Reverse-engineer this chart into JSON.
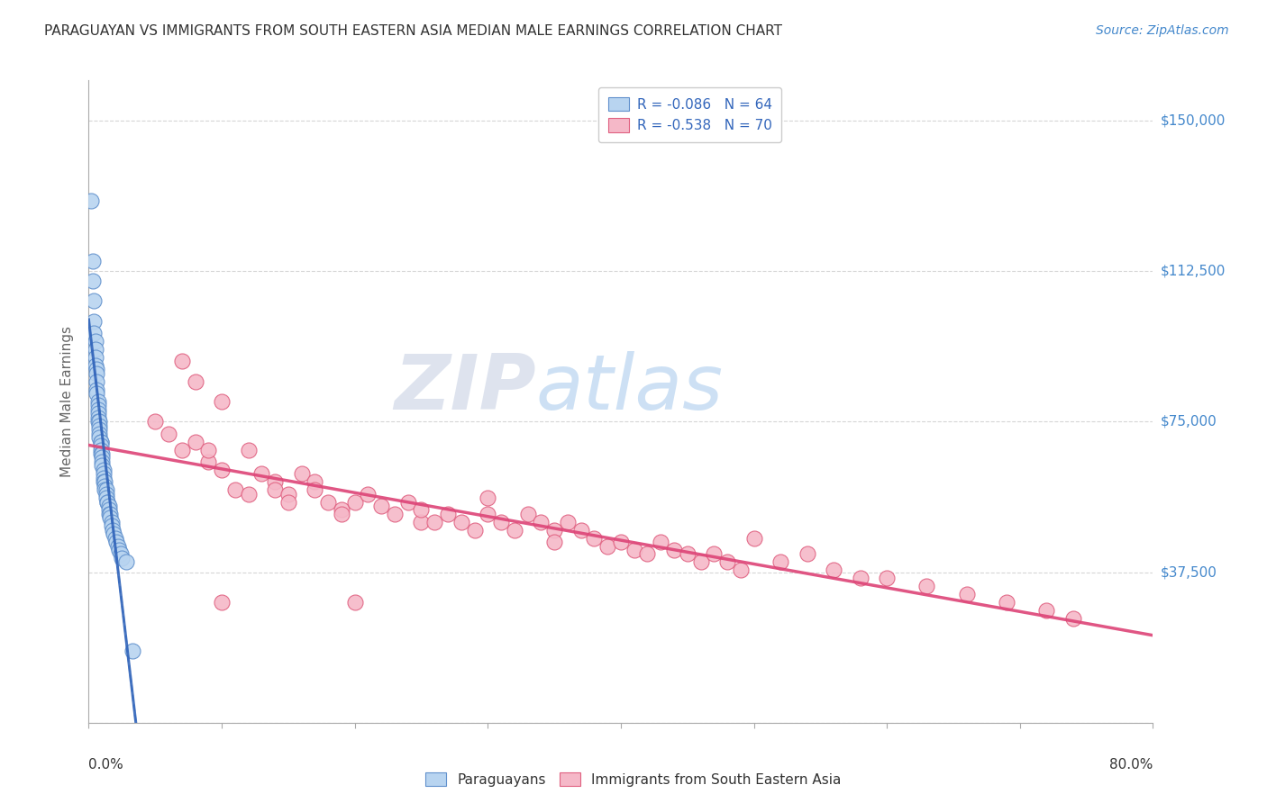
{
  "title": "PARAGUAYAN VS IMMIGRANTS FROM SOUTH EASTERN ASIA MEDIAN MALE EARNINGS CORRELATION CHART",
  "source": "Source: ZipAtlas.com",
  "ylabel": "Median Male Earnings",
  "yticks": [
    0,
    37500,
    75000,
    112500,
    150000
  ],
  "ytick_labels": [
    "",
    "$37,500",
    "$75,000",
    "$112,500",
    "$150,000"
  ],
  "xmin": 0.0,
  "xmax": 0.8,
  "ymin": 0,
  "ymax": 160000,
  "paraguayan_color_face": "#b8d4f0",
  "paraguayan_color_edge": "#6090cc",
  "sea_color_face": "#f5b8c8",
  "sea_color_edge": "#e06080",
  "paraguayan_trend_color": "#3366bb",
  "sea_trend_color": "#dd4477",
  "grid_color": "#cccccc",
  "title_color": "#333333",
  "source_color": "#4488cc",
  "ytick_color": "#4488cc",
  "legend_label_color": "#3366bb",
  "watermark_color": "#c8ddf0",
  "paraguayan_x": [
    0.002,
    0.003,
    0.003,
    0.004,
    0.004,
    0.004,
    0.005,
    0.005,
    0.005,
    0.005,
    0.006,
    0.006,
    0.006,
    0.006,
    0.006,
    0.007,
    0.007,
    0.007,
    0.007,
    0.007,
    0.007,
    0.008,
    0.008,
    0.008,
    0.008,
    0.008,
    0.009,
    0.009,
    0.009,
    0.009,
    0.009,
    0.01,
    0.01,
    0.01,
    0.01,
    0.011,
    0.011,
    0.011,
    0.011,
    0.012,
    0.012,
    0.012,
    0.013,
    0.013,
    0.013,
    0.014,
    0.014,
    0.015,
    0.015,
    0.015,
    0.016,
    0.016,
    0.017,
    0.017,
    0.018,
    0.019,
    0.02,
    0.021,
    0.022,
    0.023,
    0.024,
    0.025,
    0.028,
    0.033
  ],
  "paraguayan_y": [
    130000,
    115000,
    110000,
    105000,
    100000,
    97000,
    95000,
    93000,
    91000,
    89000,
    88000,
    87000,
    85000,
    83000,
    82000,
    80000,
    79000,
    78000,
    77000,
    76000,
    75000,
    75000,
    74000,
    73000,
    72000,
    71000,
    70000,
    70000,
    69000,
    68000,
    67000,
    67000,
    66000,
    65000,
    64000,
    63000,
    62000,
    61000,
    60000,
    60000,
    59000,
    58000,
    58000,
    57000,
    56000,
    55000,
    55000,
    54000,
    53000,
    52000,
    52000,
    51000,
    50000,
    49000,
    48000,
    47000,
    46000,
    45000,
    44000,
    43000,
    42000,
    41000,
    40000,
    18000
  ],
  "sea_x": [
    0.05,
    0.06,
    0.07,
    0.07,
    0.08,
    0.08,
    0.09,
    0.09,
    0.1,
    0.1,
    0.11,
    0.12,
    0.12,
    0.13,
    0.14,
    0.14,
    0.15,
    0.15,
    0.16,
    0.17,
    0.17,
    0.18,
    0.19,
    0.19,
    0.2,
    0.21,
    0.22,
    0.23,
    0.24,
    0.25,
    0.25,
    0.26,
    0.27,
    0.28,
    0.29,
    0.3,
    0.3,
    0.31,
    0.32,
    0.33,
    0.34,
    0.35,
    0.35,
    0.36,
    0.37,
    0.38,
    0.39,
    0.4,
    0.41,
    0.42,
    0.43,
    0.44,
    0.45,
    0.46,
    0.47,
    0.48,
    0.49,
    0.5,
    0.52,
    0.54,
    0.56,
    0.58,
    0.6,
    0.63,
    0.66,
    0.69,
    0.72,
    0.74,
    0.1,
    0.2
  ],
  "sea_y": [
    75000,
    72000,
    90000,
    68000,
    85000,
    70000,
    65000,
    68000,
    80000,
    63000,
    58000,
    68000,
    57000,
    62000,
    60000,
    58000,
    57000,
    55000,
    62000,
    60000,
    58000,
    55000,
    53000,
    52000,
    55000,
    57000,
    54000,
    52000,
    55000,
    50000,
    53000,
    50000,
    52000,
    50000,
    48000,
    56000,
    52000,
    50000,
    48000,
    52000,
    50000,
    48000,
    45000,
    50000,
    48000,
    46000,
    44000,
    45000,
    43000,
    42000,
    45000,
    43000,
    42000,
    40000,
    42000,
    40000,
    38000,
    46000,
    40000,
    42000,
    38000,
    36000,
    36000,
    34000,
    32000,
    30000,
    28000,
    26000,
    30000,
    30000
  ]
}
